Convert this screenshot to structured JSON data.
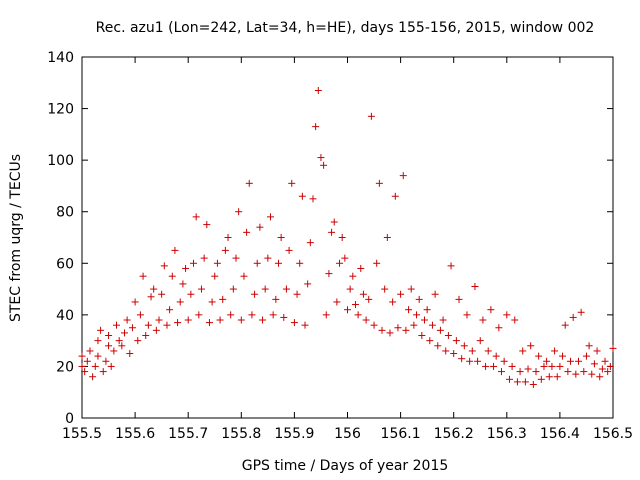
{
  "chart_data": {
    "type": "scatter",
    "title": "Rec. azu1 (Lon=242, Lat=34, h=HE), days 155-156, 2015, window 002",
    "xlabel": "GPS time / Days of year 2015",
    "ylabel": "STEC from uqrg / TECUs",
    "xlim": [
      155.5,
      156.5
    ],
    "ylim": [
      0,
      140
    ],
    "xticks": [
      "155.5",
      "155.6",
      "155.7",
      "155.8",
      "155.9",
      "156",
      "156.1",
      "156.2",
      "156.3",
      "156.4",
      "156.5"
    ],
    "yticks": [
      "0",
      "20",
      "40",
      "60",
      "80",
      "100",
      "120",
      "140"
    ],
    "grid": false,
    "marker": "+",
    "color": "#cc0000",
    "series": [
      {
        "name": "STEC",
        "points": [
          [
            155.5,
            24
          ],
          [
            155.5,
            20
          ],
          [
            155.505,
            18
          ],
          [
            155.51,
            22
          ],
          [
            155.515,
            26
          ],
          [
            155.52,
            16
          ],
          [
            155.525,
            20
          ],
          [
            155.53,
            30
          ],
          [
            155.53,
            24
          ],
          [
            155.535,
            34
          ],
          [
            155.54,
            18
          ],
          [
            155.545,
            22
          ],
          [
            155.55,
            28
          ],
          [
            155.55,
            32
          ],
          [
            155.555,
            20
          ],
          [
            155.56,
            26
          ],
          [
            155.565,
            36
          ],
          [
            155.57,
            30
          ],
          [
            155.575,
            28
          ],
          [
            155.58,
            33
          ],
          [
            155.585,
            38
          ],
          [
            155.59,
            25
          ],
          [
            155.595,
            35
          ],
          [
            155.6,
            45
          ],
          [
            155.605,
            30
          ],
          [
            155.61,
            40
          ],
          [
            155.615,
            55
          ],
          [
            155.62,
            32
          ],
          [
            155.625,
            36
          ],
          [
            155.63,
            47
          ],
          [
            155.635,
            50
          ],
          [
            155.64,
            34
          ],
          [
            155.645,
            38
          ],
          [
            155.65,
            48
          ],
          [
            155.655,
            59
          ],
          [
            155.66,
            36
          ],
          [
            155.665,
            42
          ],
          [
            155.67,
            55
          ],
          [
            155.675,
            65
          ],
          [
            155.68,
            37
          ],
          [
            155.685,
            45
          ],
          [
            155.69,
            52
          ],
          [
            155.695,
            58
          ],
          [
            155.7,
            38
          ],
          [
            155.705,
            48
          ],
          [
            155.71,
            60
          ],
          [
            155.715,
            78
          ],
          [
            155.72,
            40
          ],
          [
            155.725,
            50
          ],
          [
            155.73,
            62
          ],
          [
            155.735,
            75
          ],
          [
            155.74,
            37
          ],
          [
            155.745,
            45
          ],
          [
            155.75,
            55
          ],
          [
            155.755,
            60
          ],
          [
            155.76,
            38
          ],
          [
            155.765,
            46
          ],
          [
            155.77,
            65
          ],
          [
            155.775,
            70
          ],
          [
            155.78,
            40
          ],
          [
            155.785,
            50
          ],
          [
            155.79,
            62
          ],
          [
            155.795,
            80
          ],
          [
            155.8,
            38
          ],
          [
            155.805,
            55
          ],
          [
            155.81,
            72
          ],
          [
            155.815,
            91
          ],
          [
            155.82,
            40
          ],
          [
            155.825,
            48
          ],
          [
            155.83,
            60
          ],
          [
            155.835,
            74
          ],
          [
            155.84,
            38
          ],
          [
            155.845,
            50
          ],
          [
            155.85,
            62
          ],
          [
            155.855,
            78
          ],
          [
            155.86,
            40
          ],
          [
            155.865,
            46
          ],
          [
            155.87,
            60
          ],
          [
            155.875,
            70
          ],
          [
            155.88,
            39
          ],
          [
            155.885,
            50
          ],
          [
            155.89,
            65
          ],
          [
            155.895,
            91
          ],
          [
            155.9,
            37
          ],
          [
            155.905,
            48
          ],
          [
            155.91,
            60
          ],
          [
            155.915,
            86
          ],
          [
            155.92,
            36
          ],
          [
            155.925,
            52
          ],
          [
            155.93,
            68
          ],
          [
            155.935,
            85
          ],
          [
            155.94,
            113
          ],
          [
            155.945,
            127
          ],
          [
            155.95,
            101
          ],
          [
            155.955,
            98
          ],
          [
            155.96,
            40
          ],
          [
            155.965,
            56
          ],
          [
            155.97,
            72
          ],
          [
            155.975,
            76
          ],
          [
            155.98,
            45
          ],
          [
            155.985,
            60
          ],
          [
            155.99,
            70
          ],
          [
            155.995,
            62
          ],
          [
            156.0,
            42
          ],
          [
            156.005,
            50
          ],
          [
            156.01,
            55
          ],
          [
            156.015,
            44
          ],
          [
            156.02,
            40
          ],
          [
            156.025,
            58
          ],
          [
            156.03,
            48
          ],
          [
            156.035,
            38
          ],
          [
            156.04,
            46
          ],
          [
            156.045,
            117
          ],
          [
            156.05,
            36
          ],
          [
            156.055,
            60
          ],
          [
            156.06,
            91
          ],
          [
            156.065,
            34
          ],
          [
            156.07,
            50
          ],
          [
            156.075,
            70
          ],
          [
            156.08,
            33
          ],
          [
            156.085,
            45
          ],
          [
            156.09,
            86
          ],
          [
            156.095,
            35
          ],
          [
            156.1,
            48
          ],
          [
            156.105,
            94
          ],
          [
            156.11,
            34
          ],
          [
            156.115,
            42
          ],
          [
            156.12,
            50
          ],
          [
            156.125,
            36
          ],
          [
            156.13,
            40
          ],
          [
            156.135,
            46
          ],
          [
            156.14,
            32
          ],
          [
            156.145,
            38
          ],
          [
            156.15,
            42
          ],
          [
            156.155,
            30
          ],
          [
            156.16,
            36
          ],
          [
            156.165,
            48
          ],
          [
            156.17,
            28
          ],
          [
            156.175,
            34
          ],
          [
            156.18,
            38
          ],
          [
            156.185,
            26
          ],
          [
            156.19,
            32
          ],
          [
            156.195,
            59
          ],
          [
            156.2,
            25
          ],
          [
            156.205,
            30
          ],
          [
            156.21,
            46
          ],
          [
            156.215,
            23
          ],
          [
            156.22,
            28
          ],
          [
            156.225,
            40
          ],
          [
            156.23,
            22
          ],
          [
            156.235,
            26
          ],
          [
            156.24,
            51
          ],
          [
            156.245,
            22
          ],
          [
            156.25,
            30
          ],
          [
            156.255,
            38
          ],
          [
            156.26,
            20
          ],
          [
            156.265,
            26
          ],
          [
            156.27,
            42
          ],
          [
            156.275,
            20
          ],
          [
            156.28,
            24
          ],
          [
            156.285,
            35
          ],
          [
            156.29,
            18
          ],
          [
            156.295,
            22
          ],
          [
            156.3,
            40
          ],
          [
            156.305,
            15
          ],
          [
            156.31,
            20
          ],
          [
            156.315,
            38
          ],
          [
            156.32,
            14
          ],
          [
            156.325,
            18
          ],
          [
            156.33,
            26
          ],
          [
            156.335,
            14
          ],
          [
            156.34,
            19
          ],
          [
            156.345,
            28
          ],
          [
            156.35,
            13
          ],
          [
            156.355,
            18
          ],
          [
            156.36,
            24
          ],
          [
            156.365,
            15
          ],
          [
            156.37,
            20
          ],
          [
            156.375,
            22
          ],
          [
            156.38,
            16
          ],
          [
            156.385,
            20
          ],
          [
            156.39,
            26
          ],
          [
            156.395,
            16
          ],
          [
            156.4,
            20
          ],
          [
            156.405,
            24
          ],
          [
            156.41,
            36
          ],
          [
            156.415,
            18
          ],
          [
            156.42,
            22
          ],
          [
            156.425,
            39
          ],
          [
            156.43,
            17
          ],
          [
            156.435,
            22
          ],
          [
            156.44,
            41
          ],
          [
            156.445,
            18
          ],
          [
            156.45,
            24
          ],
          [
            156.455,
            28
          ],
          [
            156.46,
            17
          ],
          [
            156.465,
            21
          ],
          [
            156.47,
            26
          ],
          [
            156.475,
            16
          ],
          [
            156.48,
            19
          ],
          [
            156.485,
            22
          ],
          [
            156.49,
            18
          ],
          [
            156.495,
            20
          ],
          [
            156.5,
            27
          ]
        ]
      }
    ]
  }
}
